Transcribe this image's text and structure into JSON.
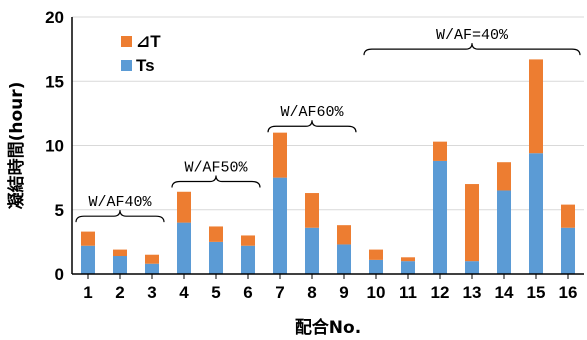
{
  "chart_data": {
    "type": "bar",
    "stacked": true,
    "xlabel": "配合No.",
    "ylabel": "凝結時間(hour)",
    "ylim": [
      0,
      20
    ],
    "yticks": [
      0,
      5,
      10,
      15,
      20
    ],
    "grid": "horizontal",
    "legend_position": "top-left",
    "categories": [
      "1",
      "2",
      "3",
      "4",
      "5",
      "6",
      "7",
      "8",
      "9",
      "10",
      "11",
      "12",
      "13",
      "14",
      "15",
      "16"
    ],
    "series": [
      {
        "name": "Ts",
        "color": "#5B9BD5",
        "values": [
          2.2,
          1.4,
          0.8,
          4.0,
          2.5,
          2.2,
          7.5,
          3.6,
          2.3,
          1.1,
          1.0,
          8.8,
          1.0,
          6.5,
          9.4,
          3.6
        ]
      },
      {
        "name": "⊿T",
        "color": "#ED7D31",
        "values": [
          1.1,
          0.5,
          0.7,
          2.4,
          1.2,
          0.8,
          3.5,
          2.7,
          1.5,
          0.8,
          0.3,
          1.5,
          6.0,
          2.2,
          7.3,
          1.8
        ]
      }
    ],
    "annotations": [
      {
        "text": "W/AF40%",
        "from": "1",
        "to": "3",
        "y": 4.5
      },
      {
        "text": "W/AF50%",
        "from": "4",
        "to": "6",
        "y": 7.2
      },
      {
        "text": "W/AF60%",
        "from": "7",
        "to": "9",
        "y": 11.5
      },
      {
        "text": "W/AF=40%",
        "from": "10",
        "to": "16",
        "y": 17.5
      }
    ]
  }
}
